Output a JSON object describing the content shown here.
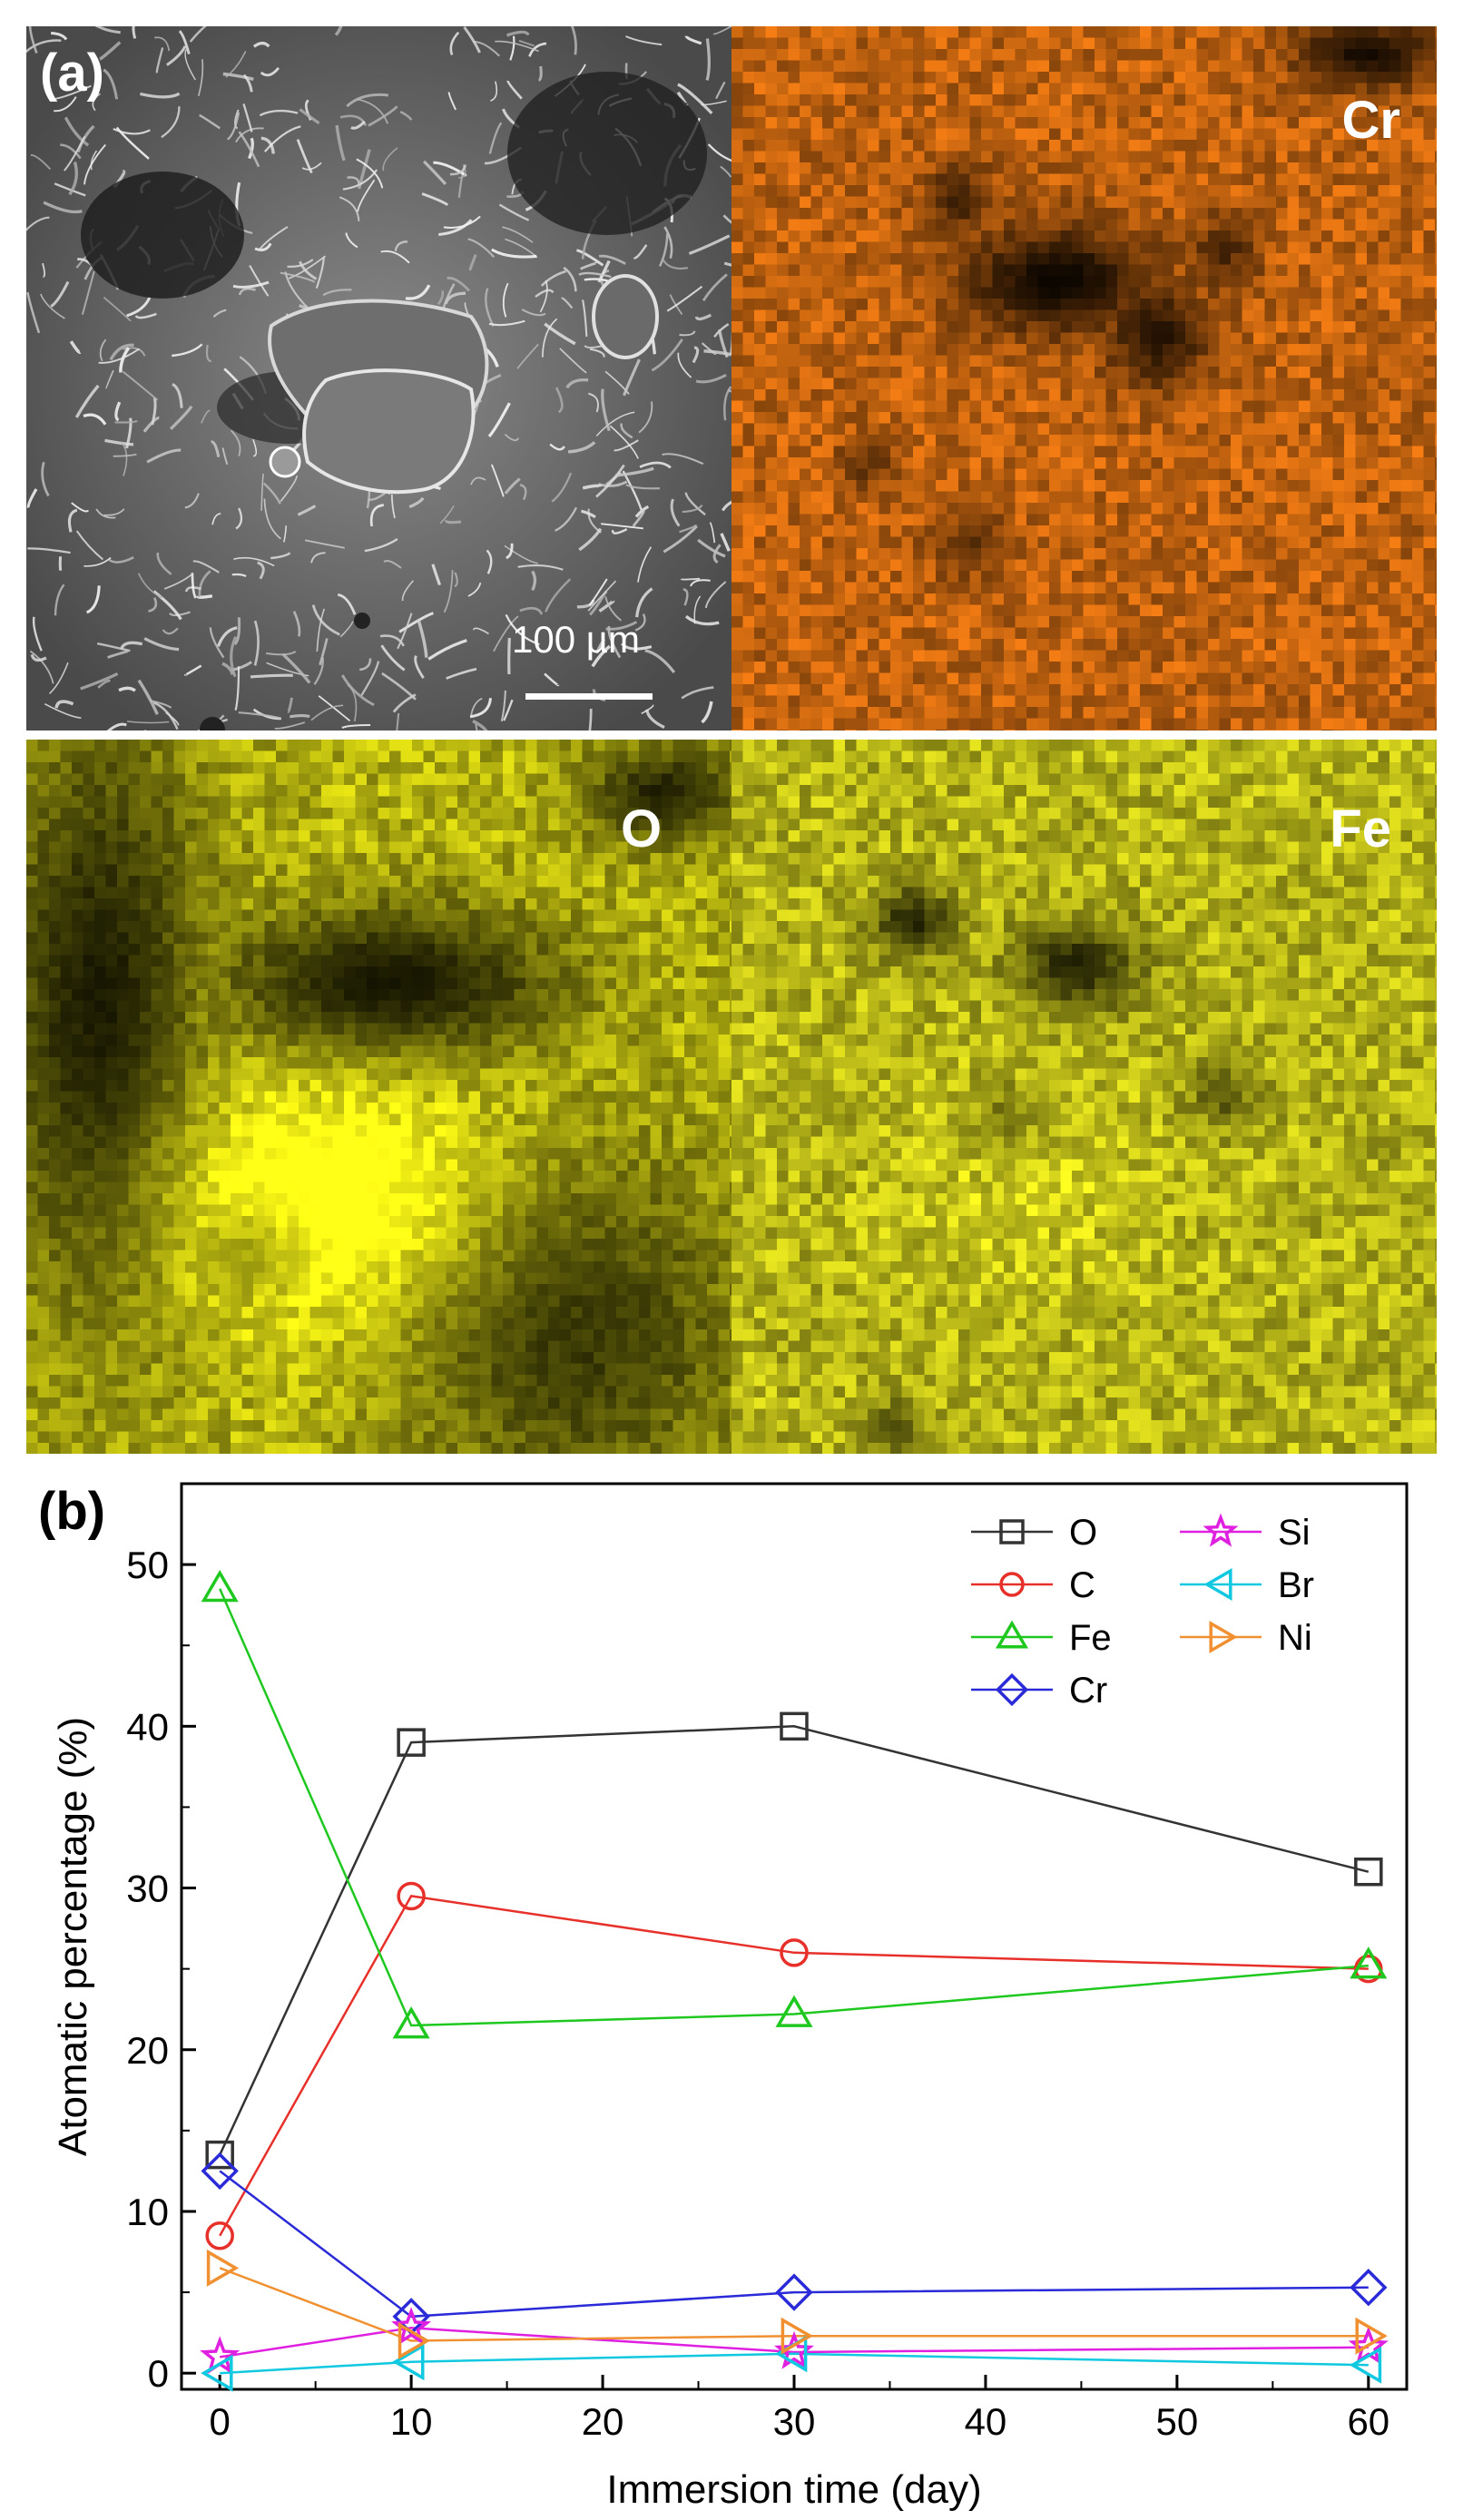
{
  "panel_a": {
    "label": "(a)",
    "sem": {
      "scale_bar": "100 µm"
    },
    "maps": [
      {
        "element": "Cr",
        "color": "#f07a10"
      },
      {
        "element": "O",
        "color": "#e0e000"
      },
      {
        "element": "Fe",
        "color": "#e6e400"
      }
    ]
  },
  "chart_data": {
    "type": "line",
    "panel_label": "(b)",
    "xlabel": "Immersion time (day)",
    "ylabel": "Atomatic percentage (%)",
    "x": [
      0,
      10,
      30,
      60
    ],
    "xlim": [
      -2,
      62
    ],
    "ylim": [
      -1,
      55
    ],
    "xticks": [
      0,
      10,
      20,
      30,
      40,
      50,
      60
    ],
    "yticks": [
      0,
      10,
      20,
      30,
      40,
      50
    ],
    "legend_position": "top-right",
    "series": [
      {
        "name": "O",
        "color": "#333333",
        "marker": "square",
        "values": [
          13.5,
          39,
          40,
          31
        ]
      },
      {
        "name": "C",
        "color": "#e8302a",
        "marker": "circle",
        "values": [
          8.5,
          29.5,
          26,
          25
        ]
      },
      {
        "name": "Fe",
        "color": "#1ec81e",
        "marker": "triangle-up",
        "values": [
          48.5,
          21.5,
          22.2,
          25.2
        ]
      },
      {
        "name": "Cr",
        "color": "#2a2ad8",
        "marker": "diamond",
        "values": [
          12.5,
          3.5,
          5,
          5.3
        ]
      },
      {
        "name": "Si",
        "color": "#e020e0",
        "marker": "star",
        "values": [
          1,
          2.8,
          1.3,
          1.6
        ]
      },
      {
        "name": "Br",
        "color": "#10c8e0",
        "marker": "triangle-left",
        "values": [
          0,
          0.7,
          1.2,
          0.5
        ]
      },
      {
        "name": "Ni",
        "color": "#f09030",
        "marker": "triangle-right",
        "values": [
          6.5,
          2,
          2.3,
          2.3
        ]
      }
    ]
  }
}
